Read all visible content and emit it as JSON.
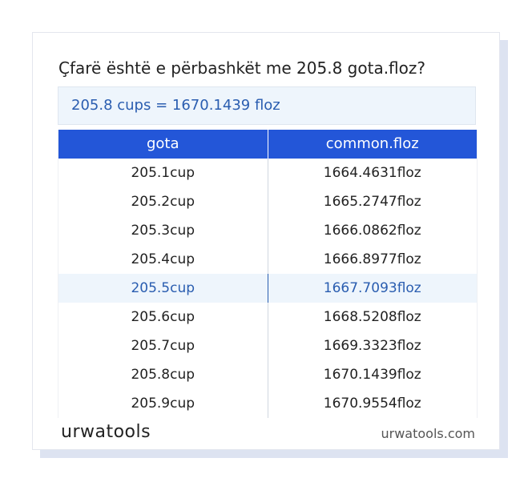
{
  "header": {
    "title": "Çfarë është e përbashkët me 205.8 gota.floz?"
  },
  "result": "205.8 cups = 1670.1439 floz",
  "table": {
    "columns": [
      "gota",
      "common.floz"
    ],
    "highlight_row": 4,
    "rows": [
      [
        "205.1cup",
        "1664.4631floz"
      ],
      [
        "205.2cup",
        "1665.2747floz"
      ],
      [
        "205.3cup",
        "1666.0862floz"
      ],
      [
        "205.4cup",
        "1666.8977floz"
      ],
      [
        "205.5cup",
        "1667.7093floz"
      ],
      [
        "205.6cup",
        "1668.5208floz"
      ],
      [
        "205.7cup",
        "1669.3323floz"
      ],
      [
        "205.8cup",
        "1670.1439floz"
      ],
      [
        "205.9cup",
        "1670.9554floz"
      ]
    ]
  },
  "footer": {
    "logo": "urwatools",
    "url": "urwatools.com"
  }
}
